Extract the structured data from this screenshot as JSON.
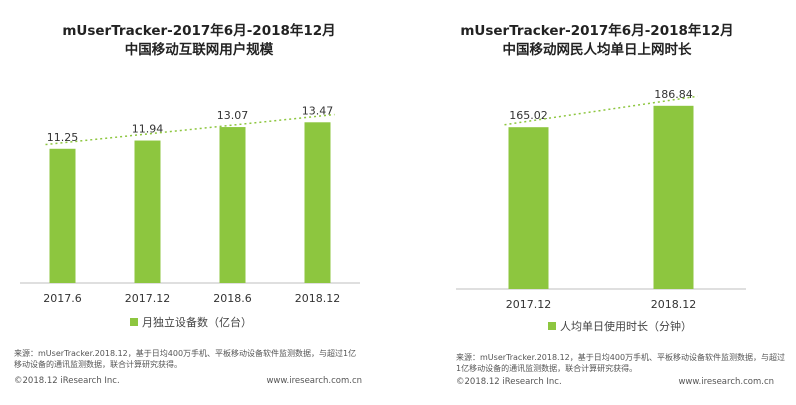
{
  "colors": {
    "bar": "#8dc63f",
    "trend": "#8dc63f",
    "axis": "#bfbfbf",
    "text": "#333333"
  },
  "chart_data": [
    {
      "type": "bar",
      "title": "mUserTracker-2017年6月-2018年12月",
      "subtitle": "中国移动互联网用户规模",
      "categories": [
        "2017.6",
        "2017.12",
        "2018.6",
        "2018.12"
      ],
      "series": [
        {
          "name": "月独立设备数（亿台）",
          "values": [
            11.25,
            11.94,
            13.07,
            13.47
          ]
        }
      ],
      "ylim": [
        0,
        14.5
      ],
      "trend_line": true,
      "grid": false,
      "legend": "bottom",
      "source": "来源：mUserTracker.2018.12，基于日均400万手机、平板移动设备软件监测数据，与超过1亿移动设备的通讯监测数据，联合计算研究获得。",
      "copyright": "©2018.12 iResearch Inc.",
      "website": "www.iresearch.com.cn"
    },
    {
      "type": "bar",
      "title": "mUserTracker-2017年6月-2018年12月",
      "subtitle": "中国移动网民人均单日上网时长",
      "categories": [
        "2017.12",
        "2018.12"
      ],
      "series": [
        {
          "name": "人均单日使用时长（分钟）",
          "values": [
            165.02,
            186.84
          ]
        }
      ],
      "ylim": [
        0,
        205
      ],
      "trend_line": true,
      "grid": false,
      "legend": "bottom",
      "source": "来源：mUserTracker.2018.12，基于日均400万手机、平板移动设备软件监测数据，与超过1亿移动设备的通讯监测数据，联合计算研究获得。",
      "copyright": "©2018.12 iResearch Inc.",
      "website": "www.iresearch.com.cn"
    }
  ]
}
